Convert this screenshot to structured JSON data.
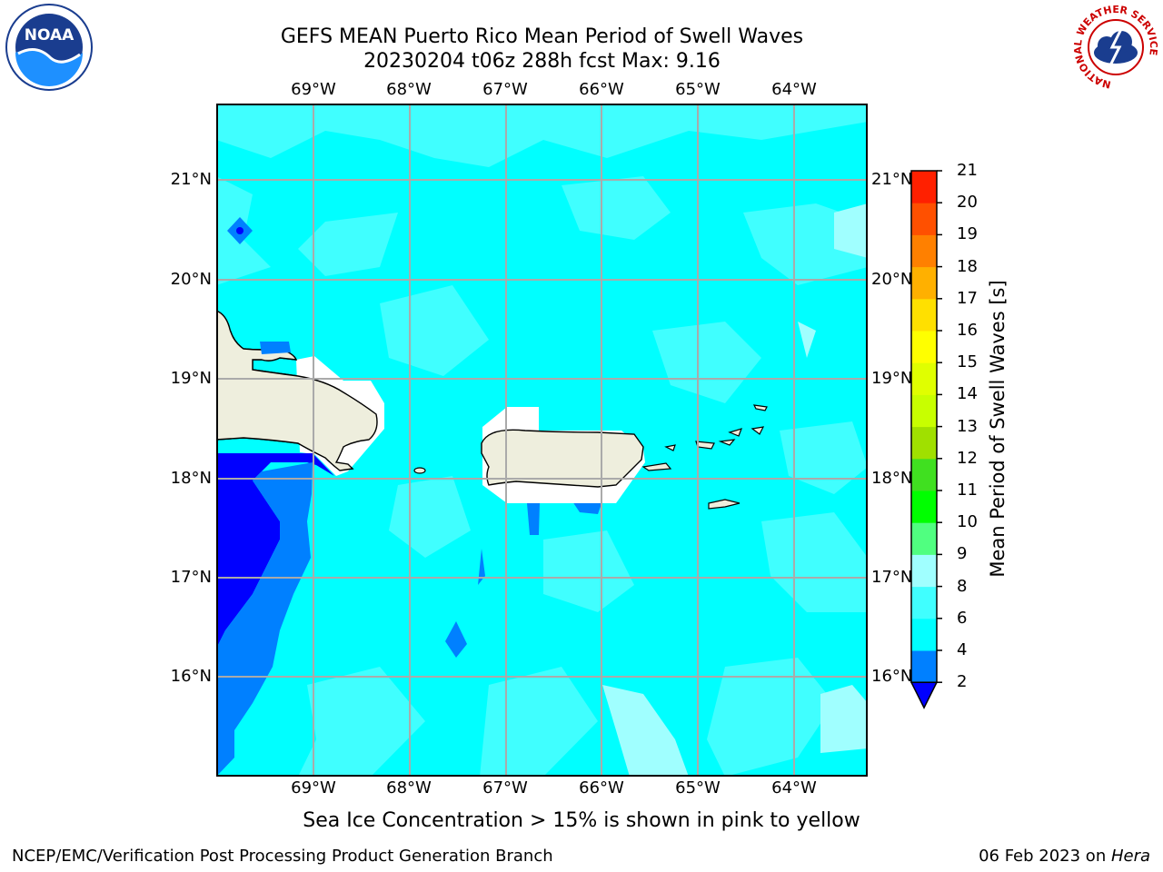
{
  "title": {
    "line1": "GEFS MEAN Puerto Rico Mean Period of Swell Waves",
    "line2": "20230204 t06z 288h fcst   Max: 9.16"
  },
  "logos": {
    "noaa": "NOAA",
    "nws": "NATIONAL WEATHER SERVICE"
  },
  "map": {
    "lon_labels": [
      "69°W",
      "68°W",
      "67°W",
      "66°W",
      "65°W",
      "64°W"
    ],
    "lat_labels": [
      "21°N",
      "20°N",
      "19°N",
      "18°N",
      "17°N",
      "16°N"
    ],
    "extent": {
      "lon_min": -70.0,
      "lon_max": -63.25,
      "lat_min": 15.0,
      "lat_max": 21.75
    },
    "colors": {
      "ocean": "#00ffff",
      "land": "#eeeedd",
      "deep_blue": "#0000ff",
      "mid_blue": "#0080ff",
      "light_cyan": "#80ffff",
      "grid": "#aaaaaa"
    }
  },
  "colorbar": {
    "label": "Mean Period of Swell Waves [s]",
    "ticks": [
      "2",
      "4",
      "6",
      "8",
      "9",
      "10",
      "11",
      "12",
      "13",
      "14",
      "15",
      "16",
      "17",
      "18",
      "19",
      "20",
      "21"
    ],
    "colors": [
      "#0080ff",
      "#00ffff",
      "#40ffff",
      "#a0ffff",
      "#50ff80",
      "#00ff00",
      "#40e020",
      "#a0e000",
      "#c8ff00",
      "#e0ff00",
      "#ffff00",
      "#ffe000",
      "#ffb000",
      "#ff8000",
      "#ff5000",
      "#ff2000"
    ],
    "under_color": "#0000ff"
  },
  "subtitle": "Sea Ice Concentration > 15% is shown in pink to yellow",
  "footer": {
    "left": "NCEP/EMC/Verification Post Processing Product Generation Branch",
    "date": "06 Feb 2023 on ",
    "machine": "Hera"
  }
}
